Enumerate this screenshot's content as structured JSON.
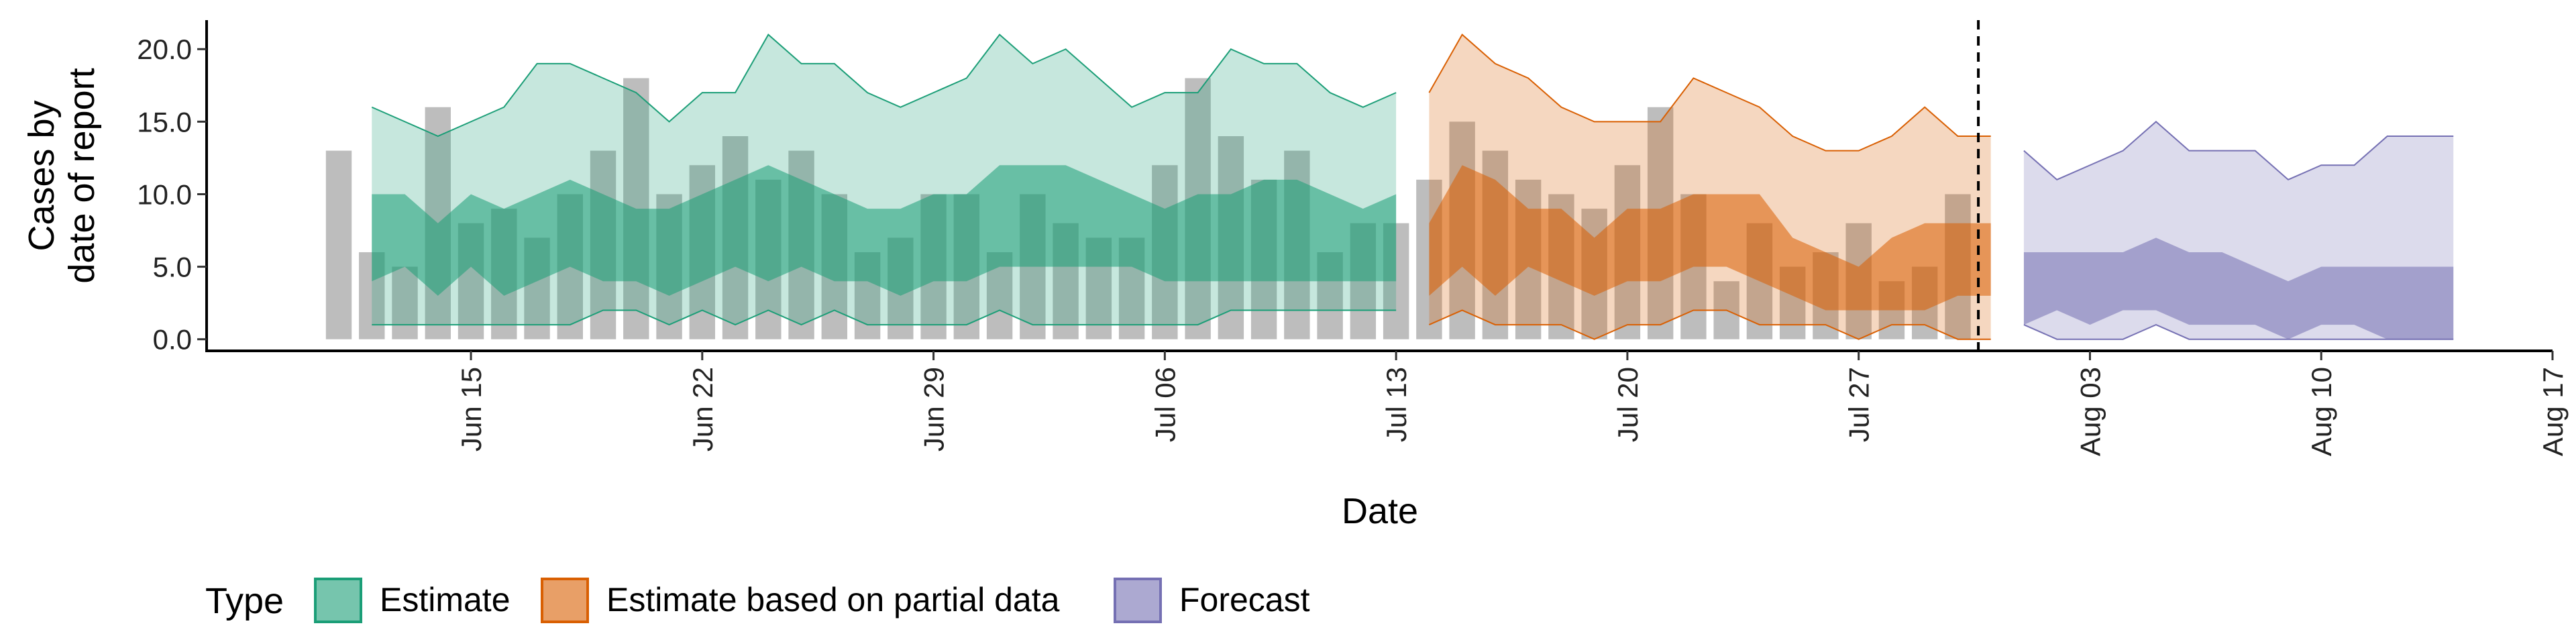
{
  "chart_data": {
    "type": "area",
    "xlabel": "Date",
    "ylabel_line1": "Cases by",
    "ylabel_line2": "date of report",
    "x_range": [
      "2020-06-07",
      "2020-08-17"
    ],
    "ylim": [
      -0.8,
      22.0
    ],
    "y_ticks": [
      {
        "value": 0,
        "label": "0.0"
      },
      {
        "value": 5,
        "label": "5.0"
      },
      {
        "value": 10,
        "label": "10.0"
      },
      {
        "value": 15,
        "label": "15.0"
      },
      {
        "value": 20,
        "label": "20.0"
      }
    ],
    "x_ticks": [
      {
        "date": "2020-06-15",
        "label": "Jun 15"
      },
      {
        "date": "2020-06-22",
        "label": "Jun 22"
      },
      {
        "date": "2020-06-29",
        "label": "Jun 29"
      },
      {
        "date": "2020-07-06",
        "label": "Jul 06"
      },
      {
        "date": "2020-07-13",
        "label": "Jul 13"
      },
      {
        "date": "2020-07-20",
        "label": "Jul 20"
      },
      {
        "date": "2020-07-27",
        "label": "Jul 27"
      },
      {
        "date": "2020-08-03",
        "label": "Aug 03"
      },
      {
        "date": "2020-08-10",
        "label": "Aug 10"
      },
      {
        "date": "2020-08-17",
        "label": "Aug 17"
      }
    ],
    "reference_line_date": "2020-07-31",
    "bars": {
      "color": "#bdbdbd",
      "start_date": "2020-06-11",
      "values": [
        13,
        6,
        5,
        16,
        8,
        9,
        7,
        10,
        13,
        18,
        10,
        12,
        14,
        11,
        13,
        10,
        6,
        7,
        10,
        10,
        6,
        10,
        8,
        7,
        7,
        12,
        18,
        14,
        11,
        13,
        6,
        8,
        8,
        11,
        15,
        13,
        11,
        10,
        9,
        12,
        16,
        10,
        4,
        8,
        5,
        6,
        8,
        4,
        5,
        10
      ]
    },
    "series": [
      {
        "name": "Estimate",
        "color": "#1b9e77",
        "start_date": "2020-06-12",
        "upper90": [
          16,
          15,
          14,
          15,
          16,
          19,
          19,
          18,
          17,
          15,
          17,
          17,
          21,
          19,
          19,
          17,
          16,
          17,
          18,
          21,
          19,
          20,
          18,
          16,
          17,
          17,
          20,
          19,
          19,
          17,
          16,
          17
        ],
        "upper50": [
          10,
          10,
          8,
          10,
          9,
          10,
          11,
          10,
          9,
          9,
          10,
          11,
          12,
          11,
          10,
          9,
          9,
          10,
          10,
          12,
          12,
          12,
          11,
          10,
          9,
          10,
          10,
          11,
          11,
          10,
          9,
          10
        ],
        "lower50": [
          4,
          5,
          3,
          5,
          3,
          4,
          5,
          4,
          4,
          3,
          4,
          5,
          4,
          5,
          4,
          4,
          3,
          4,
          4,
          5,
          5,
          5,
          5,
          5,
          4,
          4,
          4,
          4,
          4,
          4,
          4,
          4
        ],
        "lower90": [
          1,
          1,
          1,
          1,
          1,
          1,
          1,
          2,
          2,
          1,
          2,
          1,
          2,
          1,
          2,
          1,
          1,
          1,
          1,
          2,
          1,
          1,
          1,
          1,
          1,
          1,
          2,
          2,
          2,
          2,
          2,
          2
        ]
      },
      {
        "name": "Estimate based on partial data",
        "color": "#d95f02",
        "start_date": "2020-07-14",
        "upper90": [
          17,
          21,
          19,
          18,
          16,
          15,
          15,
          15,
          18,
          17,
          16,
          14,
          13,
          13,
          14,
          16,
          14,
          14
        ],
        "upper50": [
          8,
          12,
          11,
          9,
          9,
          7,
          9,
          9,
          10,
          10,
          10,
          7,
          6,
          5,
          7,
          8,
          8,
          8
        ],
        "lower50": [
          3,
          5,
          3,
          5,
          4,
          3,
          4,
          4,
          5,
          5,
          4,
          3,
          2,
          2,
          2,
          2,
          3,
          3
        ],
        "lower90": [
          1,
          2,
          1,
          1,
          1,
          0,
          1,
          1,
          2,
          2,
          1,
          1,
          1,
          0,
          1,
          1,
          0,
          0
        ]
      },
      {
        "name": "Forecast",
        "color": "#7570b3",
        "start_date": "2020-08-01",
        "upper90": [
          13,
          11,
          12,
          13,
          15,
          13,
          13,
          13,
          11,
          12,
          12,
          14,
          14,
          14
        ],
        "upper50": [
          6,
          6,
          6,
          6,
          7,
          6,
          6,
          5,
          4,
          5,
          5,
          5,
          5,
          5
        ],
        "lower50": [
          1,
          2,
          1,
          2,
          2,
          1,
          1,
          1,
          0,
          1,
          1,
          0,
          0,
          0
        ],
        "lower90": [
          1,
          0,
          0,
          0,
          1,
          0,
          0,
          0,
          0,
          0,
          0,
          0,
          0,
          0
        ]
      }
    ],
    "legend": {
      "title": "Type",
      "position": "bottom",
      "items": [
        "Estimate",
        "Estimate based on partial data",
        "Forecast"
      ]
    }
  }
}
